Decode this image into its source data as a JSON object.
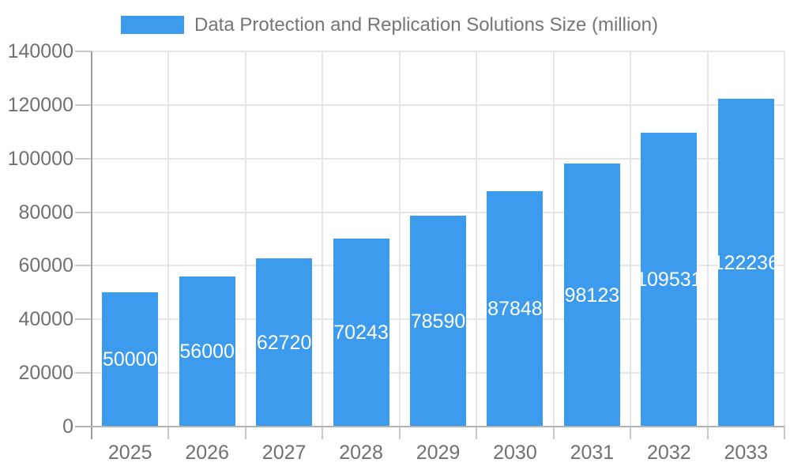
{
  "legend": {
    "label": "Data Protection and Replication Solutions Size (million)"
  },
  "chart_data": {
    "type": "bar",
    "title": "Data Protection and Replication Solutions Size (million)",
    "categories": [
      "2025",
      "2026",
      "2027",
      "2028",
      "2029",
      "2030",
      "2031",
      "2032",
      "2033"
    ],
    "values": [
      50000,
      56000,
      62720,
      70243,
      78590,
      87848,
      98123,
      109531,
      122236
    ],
    "bar_labels": [
      "50000",
      "56000",
      "62720",
      "70243",
      "78590",
      "87848",
      "98123",
      "109531",
      "122236"
    ],
    "xlabel": "",
    "ylabel": "",
    "ylim": [
      0,
      140000
    ],
    "ytick_values": [
      0,
      20000,
      40000,
      60000,
      80000,
      100000,
      120000,
      140000
    ],
    "ytick_labels": [
      "0",
      "20000",
      "40000",
      "60000",
      "80000",
      "100000",
      "120000",
      "140000"
    ],
    "grid": true,
    "legend_position": "top"
  },
  "colors": {
    "bar": "#3C9BEC",
    "bar_label": "#FFFFFF",
    "legend_text": "#757575",
    "tick_label": "#717171",
    "gridline": "#E6E6E6",
    "tick": "#C9C9C9",
    "y_axis": "#9E9E9E",
    "baseline": "#B3B3B3",
    "background": "#FFFFFF"
  }
}
